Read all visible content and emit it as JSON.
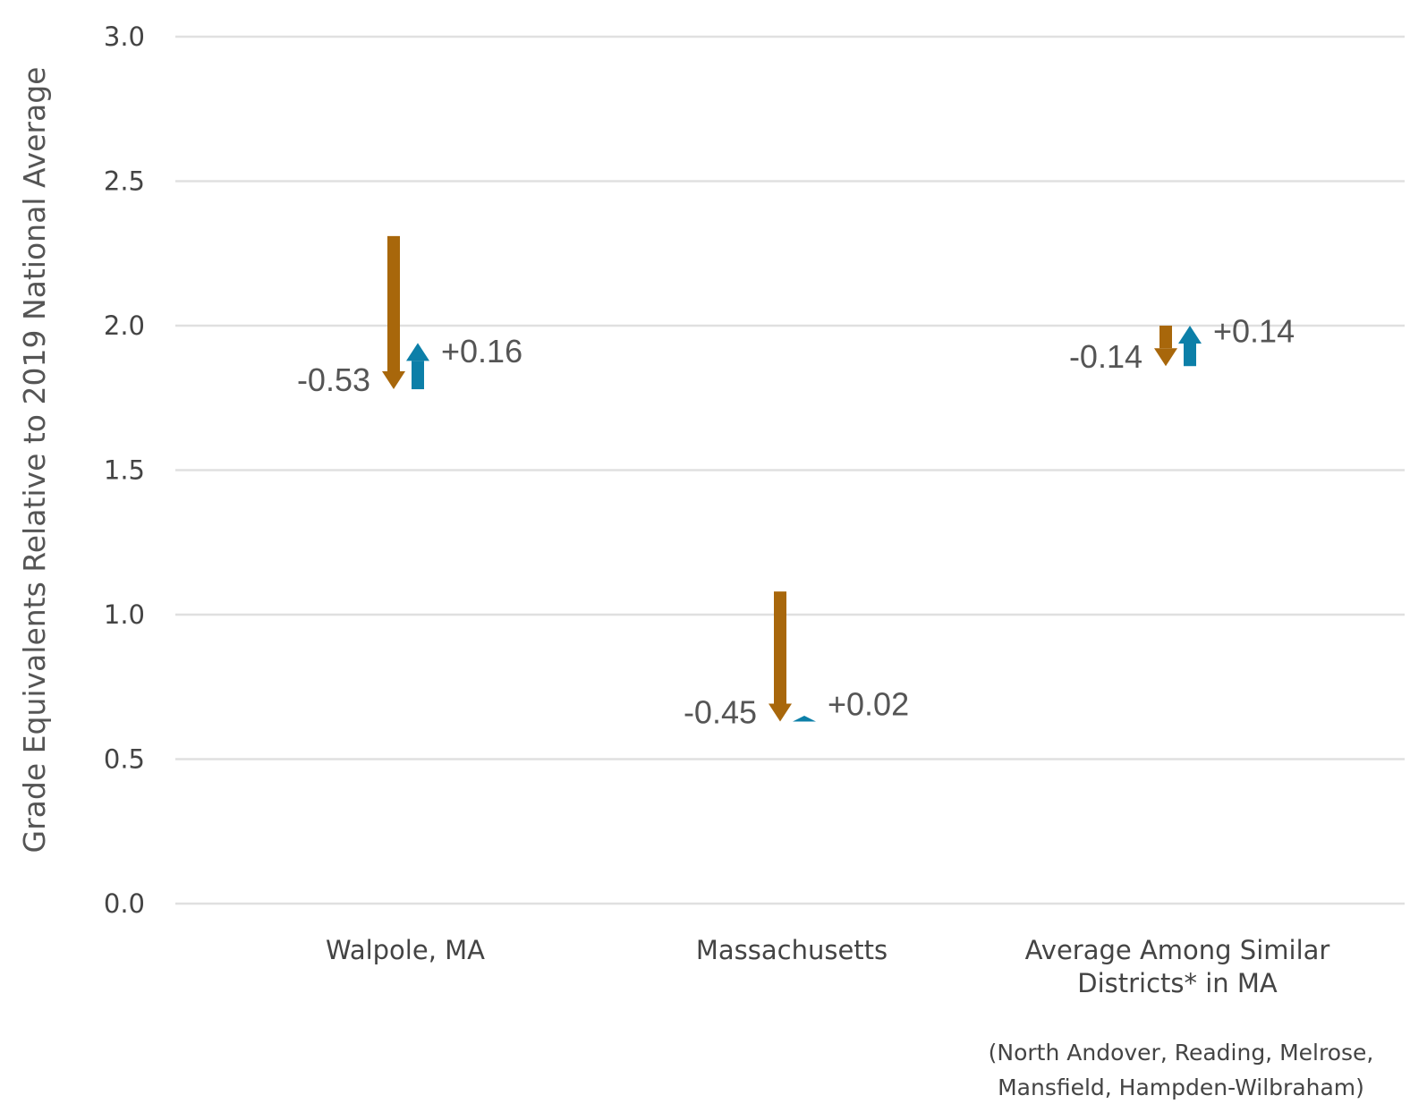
{
  "chart_data": {
    "type": "arrow",
    "ylabel": "Grade Equivalents Relative to 2019 National Average",
    "yticks": [
      "0.0",
      "0.5",
      "1.0",
      "1.5",
      "2.0",
      "2.5",
      "3.0"
    ],
    "ylim": [
      0,
      3
    ],
    "grid": true,
    "colors": {
      "decline": "#a8670b",
      "recovery": "#0c7fa8"
    },
    "categories": [
      {
        "label_lines": [
          "Walpole, MA"
        ],
        "start": 2.31,
        "decline": -0.53,
        "recovery": 0.16,
        "decline_label": "-0.53",
        "recovery_label": "+0.16"
      },
      {
        "label_lines": [
          "Massachusetts"
        ],
        "start": 1.08,
        "decline": -0.45,
        "recovery": 0.02,
        "decline_label": "-0.45",
        "recovery_label": "+0.02"
      },
      {
        "label_lines": [
          "Average Among Similar",
          "Districts* in MA"
        ],
        "start": 2.0,
        "decline": -0.14,
        "recovery": 0.14,
        "decline_label": "-0.14",
        "recovery_label": "+0.14"
      }
    ],
    "footnote_lines": [
      "(North Andover, Reading, Melrose,",
      "Mansfield, Hampden-Wilbraham)"
    ]
  }
}
